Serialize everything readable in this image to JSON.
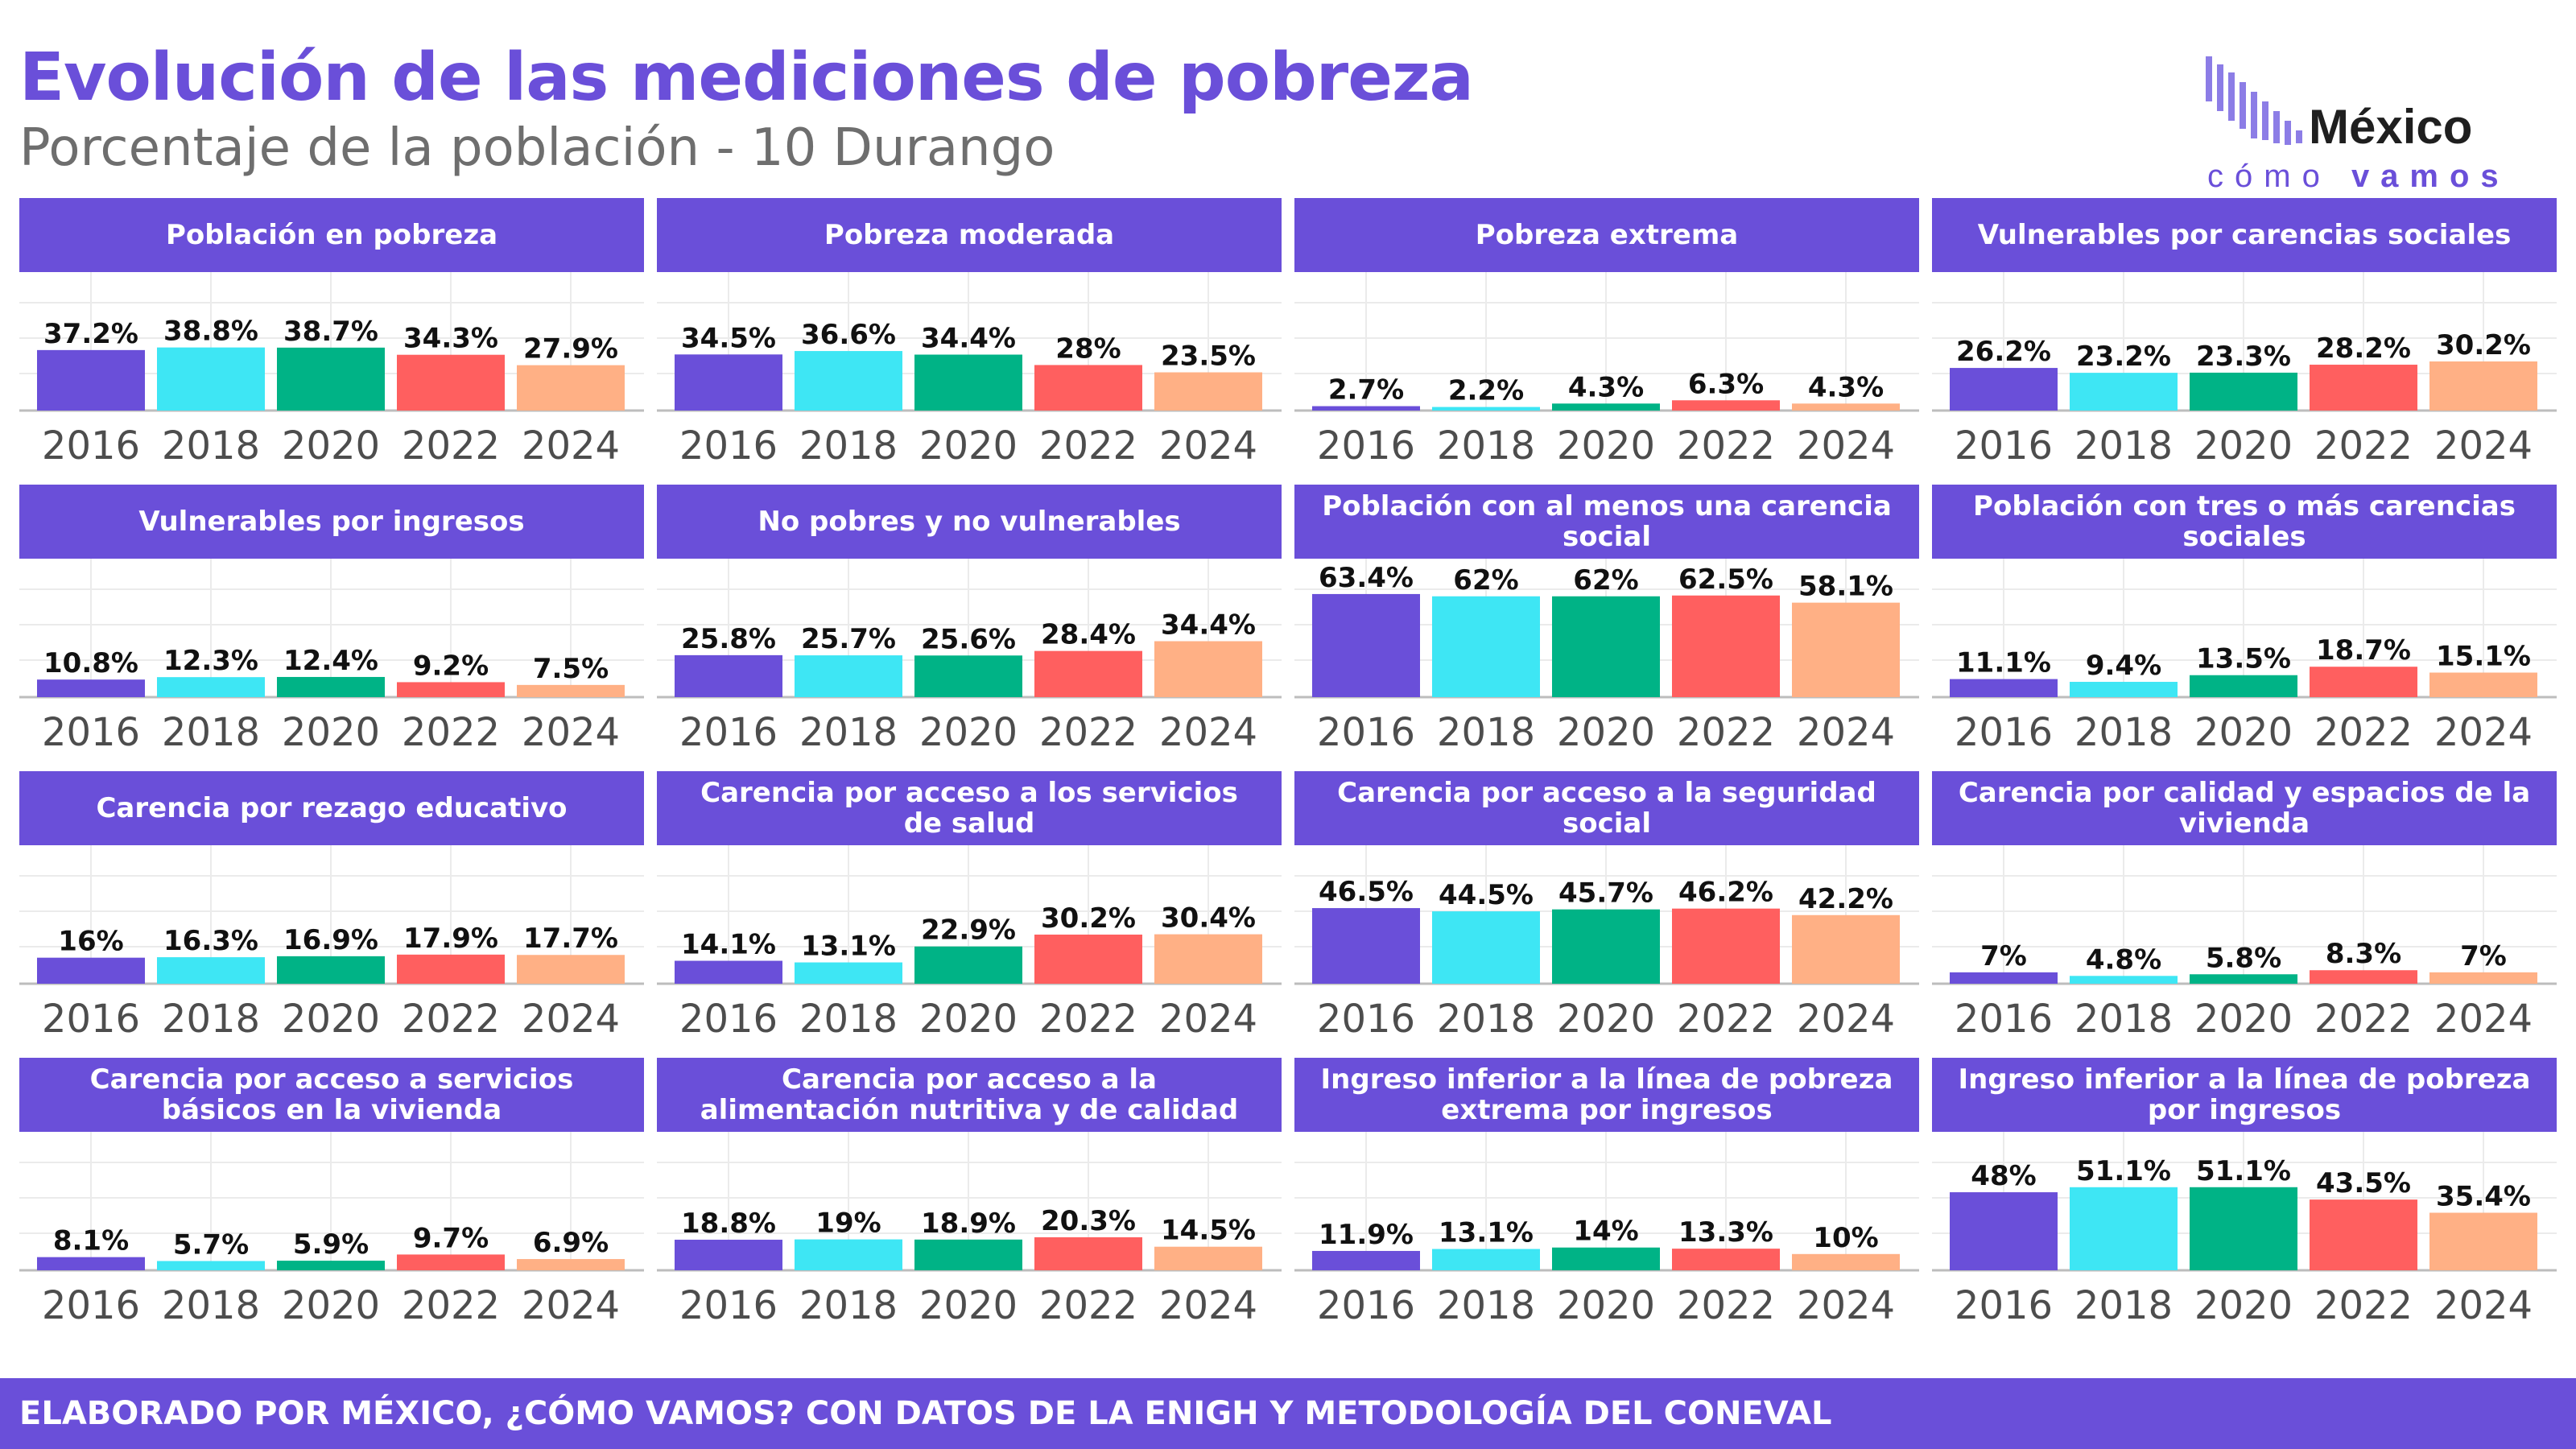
{
  "title": "Evolución de las mediciones de pobreza",
  "subtitle": "Porcentaje de la población - 10 Durango",
  "logo": {
    "text_main": "México",
    "text_sub_1": "cómo",
    "text_sub_2": "vamos"
  },
  "footer": "ELABORADO POR MÉXICO, ¿CÓMO VAMOS? CON DATOS DE LA ENIGH Y METODOLOGÍA DEL CONEVAL",
  "colors": {
    "accent": "#6a4fd9",
    "bars": [
      "#6a4fd9",
      "#3ee6f4",
      "#00b386",
      "#ff5f5f",
      "#ffb085"
    ],
    "grid": "#ebebeb",
    "axis_text": "#4d4d4d"
  },
  "chart_data": [
    {
      "type": "bar",
      "title": "Población en pobreza",
      "categories": [
        "2016",
        "2018",
        "2020",
        "2022",
        "2024"
      ],
      "values": [
        37.2,
        38.8,
        38.7,
        34.3,
        27.9
      ],
      "labels": [
        "37.2%",
        "38.8%",
        "38.7%",
        "34.3%",
        "27.9%"
      ],
      "ylim": [
        0,
        70
      ],
      "grid": true
    },
    {
      "type": "bar",
      "title": "Pobreza moderada",
      "categories": [
        "2016",
        "2018",
        "2020",
        "2022",
        "2024"
      ],
      "values": [
        34.5,
        36.6,
        34.4,
        28,
        23.5
      ],
      "labels": [
        "34.5%",
        "36.6%",
        "34.4%",
        "28%",
        "23.5%"
      ],
      "ylim": [
        0,
        70
      ],
      "grid": true
    },
    {
      "type": "bar",
      "title": "Pobreza extrema",
      "categories": [
        "2016",
        "2018",
        "2020",
        "2022",
        "2024"
      ],
      "values": [
        2.7,
        2.2,
        4.3,
        6.3,
        4.3
      ],
      "labels": [
        "2.7%",
        "2.2%",
        "4.3%",
        "6.3%",
        "4.3%"
      ],
      "ylim": [
        0,
        70
      ],
      "grid": true
    },
    {
      "type": "bar",
      "title": "Vulnerables por carencias sociales",
      "categories": [
        "2016",
        "2018",
        "2020",
        "2022",
        "2024"
      ],
      "values": [
        26.2,
        23.2,
        23.3,
        28.2,
        30.2
      ],
      "labels": [
        "26.2%",
        "23.2%",
        "23.3%",
        "28.2%",
        "30.2%"
      ],
      "ylim": [
        0,
        70
      ],
      "grid": true
    },
    {
      "type": "bar",
      "title": "Vulnerables por ingresos",
      "categories": [
        "2016",
        "2018",
        "2020",
        "2022",
        "2024"
      ],
      "values": [
        10.8,
        12.3,
        12.4,
        9.2,
        7.5
      ],
      "labels": [
        "10.8%",
        "12.3%",
        "12.4%",
        "9.2%",
        "7.5%"
      ],
      "ylim": [
        0,
        70
      ],
      "grid": true
    },
    {
      "type": "bar",
      "title": "No pobres y no vulnerables",
      "categories": [
        "2016",
        "2018",
        "2020",
        "2022",
        "2024"
      ],
      "values": [
        25.8,
        25.7,
        25.6,
        28.4,
        34.4
      ],
      "labels": [
        "25.8%",
        "25.7%",
        "25.6%",
        "28.4%",
        "34.4%"
      ],
      "ylim": [
        0,
        70
      ],
      "grid": true
    },
    {
      "type": "bar",
      "title": "Población con al menos una carencia social",
      "categories": [
        "2016",
        "2018",
        "2020",
        "2022",
        "2024"
      ],
      "values": [
        63.4,
        62,
        62,
        62.5,
        58.1
      ],
      "labels": [
        "63.4%",
        "62%",
        "62%",
        "62.5%",
        "58.1%"
      ],
      "ylim": [
        0,
        70
      ],
      "grid": true
    },
    {
      "type": "bar",
      "title": "Población con tres o más carencias sociales",
      "categories": [
        "2016",
        "2018",
        "2020",
        "2022",
        "2024"
      ],
      "values": [
        11.1,
        9.4,
        13.5,
        18.7,
        15.1
      ],
      "labels": [
        "11.1%",
        "9.4%",
        "13.5%",
        "18.7%",
        "15.1%"
      ],
      "ylim": [
        0,
        70
      ],
      "grid": true
    },
    {
      "type": "bar",
      "title": "Carencia por rezago educativo",
      "categories": [
        "2016",
        "2018",
        "2020",
        "2022",
        "2024"
      ],
      "values": [
        16,
        16.3,
        16.9,
        17.9,
        17.7
      ],
      "labels": [
        "16%",
        "16.3%",
        "16.9%",
        "17.9%",
        "17.7%"
      ],
      "ylim": [
        0,
        70
      ],
      "grid": true
    },
    {
      "type": "bar",
      "title": "Carencia por acceso a los servicios de salud",
      "categories": [
        "2016",
        "2018",
        "2020",
        "2022",
        "2024"
      ],
      "values": [
        14.1,
        13.1,
        22.9,
        30.2,
        30.4
      ],
      "labels": [
        "14.1%",
        "13.1%",
        "22.9%",
        "30.2%",
        "30.4%"
      ],
      "ylim": [
        0,
        70
      ],
      "grid": true
    },
    {
      "type": "bar",
      "title": "Carencia por acceso a la seguridad social",
      "categories": [
        "2016",
        "2018",
        "2020",
        "2022",
        "2024"
      ],
      "values": [
        46.5,
        44.5,
        45.7,
        46.2,
        42.2
      ],
      "labels": [
        "46.5%",
        "44.5%",
        "45.7%",
        "46.2%",
        "42.2%"
      ],
      "ylim": [
        0,
        70
      ],
      "grid": true
    },
    {
      "type": "bar",
      "title": "Carencia por calidad y espacios de la vivienda",
      "categories": [
        "2016",
        "2018",
        "2020",
        "2022",
        "2024"
      ],
      "values": [
        7,
        4.8,
        5.8,
        8.3,
        7
      ],
      "labels": [
        "7%",
        "4.8%",
        "5.8%",
        "8.3%",
        "7%"
      ],
      "ylim": [
        0,
        70
      ],
      "grid": true
    },
    {
      "type": "bar",
      "title": "Carencia por acceso a servicios básicos en la vivienda",
      "categories": [
        "2016",
        "2018",
        "2020",
        "2022",
        "2024"
      ],
      "values": [
        8.1,
        5.7,
        5.9,
        9.7,
        6.9
      ],
      "labels": [
        "8.1%",
        "5.7%",
        "5.9%",
        "9.7%",
        "6.9%"
      ],
      "ylim": [
        0,
        70
      ],
      "grid": true
    },
    {
      "type": "bar",
      "title": "Carencia por acceso a la alimentación nutritiva y de calidad",
      "categories": [
        "2016",
        "2018",
        "2020",
        "2022",
        "2024"
      ],
      "values": [
        18.8,
        19,
        18.9,
        20.3,
        14.5
      ],
      "labels": [
        "18.8%",
        "19%",
        "18.9%",
        "20.3%",
        "14.5%"
      ],
      "ylim": [
        0,
        70
      ],
      "grid": true
    },
    {
      "type": "bar",
      "title": "Ingreso inferior a la línea de pobreza extrema por ingresos",
      "categories": [
        "2016",
        "2018",
        "2020",
        "2022",
        "2024"
      ],
      "values": [
        11.9,
        13.1,
        14,
        13.3,
        10
      ],
      "labels": [
        "11.9%",
        "13.1%",
        "14%",
        "13.3%",
        "10%"
      ],
      "ylim": [
        0,
        70
      ],
      "grid": true
    },
    {
      "type": "bar",
      "title": "Ingreso inferior a la línea de pobreza por ingresos",
      "categories": [
        "2016",
        "2018",
        "2020",
        "2022",
        "2024"
      ],
      "values": [
        48,
        51.1,
        51.1,
        43.5,
        35.4
      ],
      "labels": [
        "48%",
        "51.1%",
        "51.1%",
        "43.5%",
        "35.4%"
      ],
      "ylim": [
        0,
        70
      ],
      "grid": true
    }
  ]
}
